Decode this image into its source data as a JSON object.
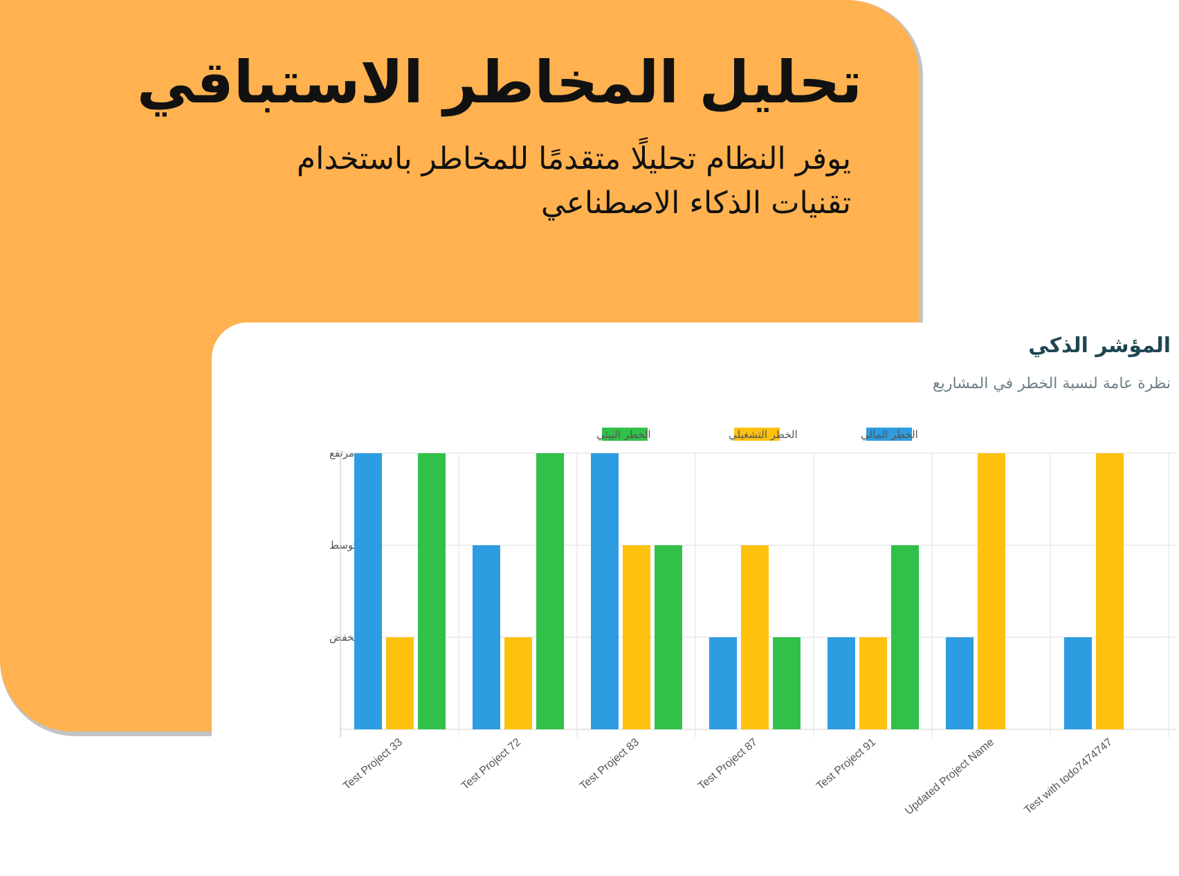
{
  "hero": {
    "title": "تحليل المخاطر الاستباقي",
    "subtitle": "يوفر النظام تحليلًا متقدمًا للمخاطر باستخدام تقنيات الذكاء الاصطناعي"
  },
  "card": {
    "title": "المؤشر الذكي",
    "subtitle": "نظرة عامة لنسبة الخطر في المشاريع"
  },
  "colors": {
    "orange": "#ffb24f",
    "financial": "#2d9ce0",
    "operational": "#fdc10e",
    "environmental": "#31c048"
  },
  "chart_data": {
    "type": "bar",
    "categories": [
      "Test Project 33",
      "Test Project 72",
      "Test Project 83",
      "Test Project 87",
      "Test Project 91",
      "Updated Project Name",
      "Test with todo7474747"
    ],
    "y_ticks": [
      {
        "value": 1,
        "label": "منخفض"
      },
      {
        "value": 2,
        "label": "متوسط"
      },
      {
        "value": 3,
        "label": "مرتفع"
      }
    ],
    "ylim": [
      0,
      3
    ],
    "grid": true,
    "legend_position": "top",
    "series": [
      {
        "name": "الخطر المالي",
        "color": "#2d9ce0",
        "values": [
          3,
          2,
          3,
          1,
          1,
          1,
          1
        ]
      },
      {
        "name": "الخطر التشغيلي",
        "color": "#fdc10e",
        "values": [
          1,
          1,
          2,
          2,
          1,
          3,
          3
        ]
      },
      {
        "name": "الخطر البيئي",
        "color": "#31c048",
        "values": [
          3,
          3,
          2,
          1,
          2,
          0,
          0
        ]
      }
    ]
  }
}
